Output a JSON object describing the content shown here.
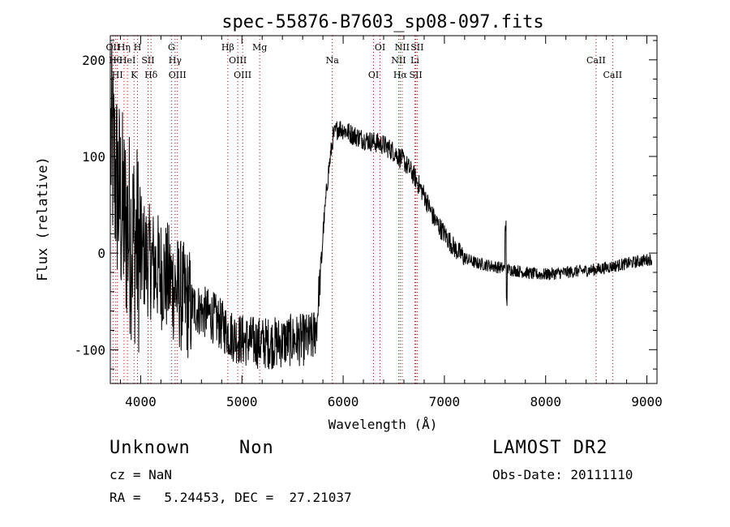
{
  "chart_data": {
    "type": "line",
    "title": "spec-55876-B7603_sp08-097.fits",
    "xlabel": "Wavelength (Å)",
    "ylabel": "Flux (relative)",
    "xlim": [
      3700,
      9100
    ],
    "ylim": [
      -135,
      225
    ],
    "x_ticks": [
      4000,
      5000,
      6000,
      7000,
      8000,
      9000
    ],
    "y_ticks": [
      -100,
      0,
      100,
      200
    ],
    "grid": false,
    "series": [
      {
        "x": [
          3700,
          3750,
          3800,
          3850,
          3900,
          3950,
          4000,
          4100,
          4200,
          4300,
          4400,
          4500,
          4600,
          4700,
          4800,
          4900,
          5000,
          5100,
          5200,
          5300,
          5400,
          5500,
          5600,
          5700,
          5740,
          5760,
          5780,
          5800,
          5850,
          5900,
          5950,
          6000,
          6050,
          6100,
          6200,
          6300,
          6400,
          6500,
          6600,
          6700,
          6800,
          6900,
          7000,
          7100,
          7200,
          7300,
          7400,
          7500,
          7600,
          7700,
          7800,
          7900,
          8000,
          8100,
          8200,
          8300,
          8400,
          8500,
          8600,
          8700,
          8800,
          8900,
          9000,
          9100
        ],
        "values": [
          120,
          80,
          50,
          30,
          20,
          10,
          0,
          -10,
          -20,
          -30,
          -45,
          -55,
          -60,
          -65,
          -75,
          -85,
          -90,
          -92,
          -93,
          -93,
          -92,
          -90,
          -90,
          -88,
          -75,
          -40,
          -20,
          20,
          80,
          120,
          130,
          128,
          125,
          122,
          118,
          115,
          112,
          105,
          95,
          80,
          60,
          35,
          20,
          5,
          -5,
          -10,
          -12,
          -14,
          -16,
          -18,
          -20,
          -22,
          -22,
          -21,
          -20,
          -19,
          -18,
          -17,
          -15,
          -13,
          -11,
          -9,
          -7,
          -5
        ]
      }
    ],
    "lines": [
      {
        "wl": 3727,
        "label": "OII"
      },
      {
        "wl": 3750,
        "label": "Hθ"
      },
      {
        "wl": 3770,
        "label": "HI"
      },
      {
        "wl": 3835,
        "label": "Hη"
      },
      {
        "wl": 3869,
        "label": "HeI"
      },
      {
        "wl": 3934,
        "label": "K"
      },
      {
        "wl": 3969,
        "label": "H"
      },
      {
        "wl": 4072,
        "label": "SII"
      },
      {
        "wl": 4102,
        "label": "Hδ"
      },
      {
        "wl": 4304,
        "label": "G"
      },
      {
        "wl": 4340,
        "label": "Hγ"
      },
      {
        "wl": 4363,
        "label": "OIII"
      },
      {
        "wl": 4861,
        "label": "Hβ"
      },
      {
        "wl": 4959,
        "label": "OIII"
      },
      {
        "wl": 5007,
        "label": "OIII"
      },
      {
        "wl": 5175,
        "label": "Mg"
      },
      {
        "wl": 5893,
        "label": "Na"
      },
      {
        "wl": 6300,
        "label": "OI"
      },
      {
        "wl": 6364,
        "label": "OI"
      },
      {
        "wl": 6548,
        "label": "NII"
      },
      {
        "wl": 6563,
        "label": "Hα"
      },
      {
        "wl": 6583,
        "label": "NII"
      },
      {
        "wl": 6708,
        "label": "Li"
      },
      {
        "wl": 6717,
        "label": "SII"
      },
      {
        "wl": 6731,
        "label": "SII"
      },
      {
        "wl": 8498,
        "label": "CaII"
      },
      {
        "wl": 8662,
        "label": "CaII"
      }
    ]
  },
  "info": {
    "class": "Unknown",
    "subclass": "Non",
    "survey": "LAMOST DR2",
    "cz": "cz = NaN",
    "obsdate": "Obs-Date: 20111110",
    "radec": "RA =   5.24453, DEC =  27.21037"
  }
}
